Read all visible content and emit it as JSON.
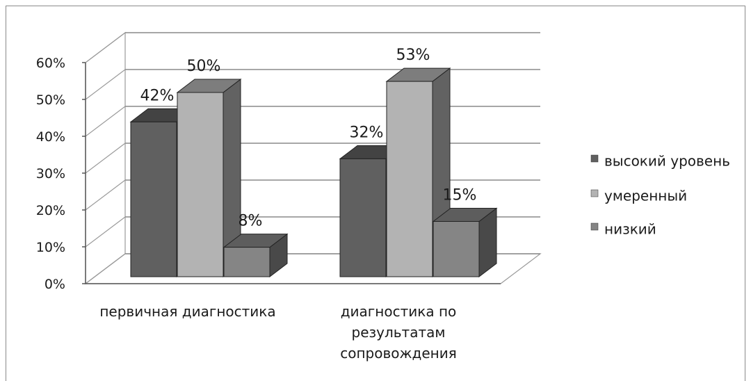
{
  "chart_data": {
    "type": "bar",
    "title": "",
    "xlabel": "",
    "ylabel": "",
    "ylim": [
      0,
      60
    ],
    "yticks": [
      "0%",
      "10%",
      "20%",
      "30%",
      "40%",
      "50%",
      "60%"
    ],
    "grid": true,
    "three_d": true,
    "legend_position": "right",
    "categories": [
      [
        "первичная диагностика"
      ],
      [
        "диагностика по",
        "результатам",
        "сопровождения"
      ]
    ],
    "series": [
      {
        "name": "высокий уровень",
        "values": [
          42,
          32
        ],
        "labels": [
          "42%",
          "32%"
        ],
        "color": "#606060"
      },
      {
        "name": "умеренный",
        "values": [
          50,
          53
        ],
        "labels": [
          "50%",
          "53%"
        ],
        "color": "#b3b3b3"
      },
      {
        "name": "низкий",
        "values": [
          8,
          15
        ],
        "labels": [
          "8%",
          "15%"
        ],
        "color": "#858585"
      }
    ]
  }
}
